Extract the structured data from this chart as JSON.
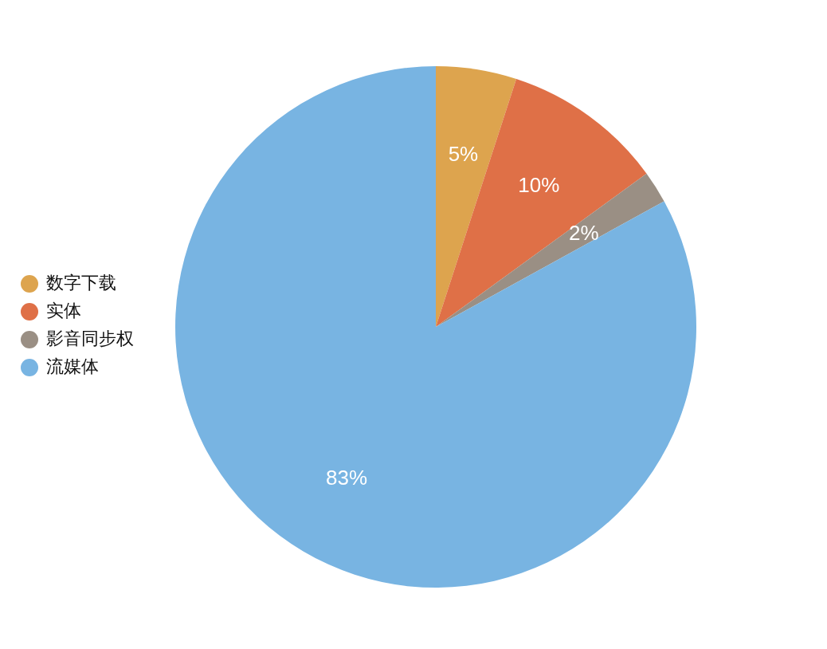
{
  "chart_data": {
    "type": "pie",
    "categories": [
      "数字下载",
      "实体",
      "影音同步权",
      "流媒体"
    ],
    "values": [
      5,
      10,
      2,
      83
    ],
    "colors": [
      "#dda44e",
      "#df7047",
      "#9a8f84",
      "#78b4e2"
    ],
    "value_labels": [
      "5%",
      "10%",
      "2%",
      "83%"
    ],
    "legend": "left"
  }
}
